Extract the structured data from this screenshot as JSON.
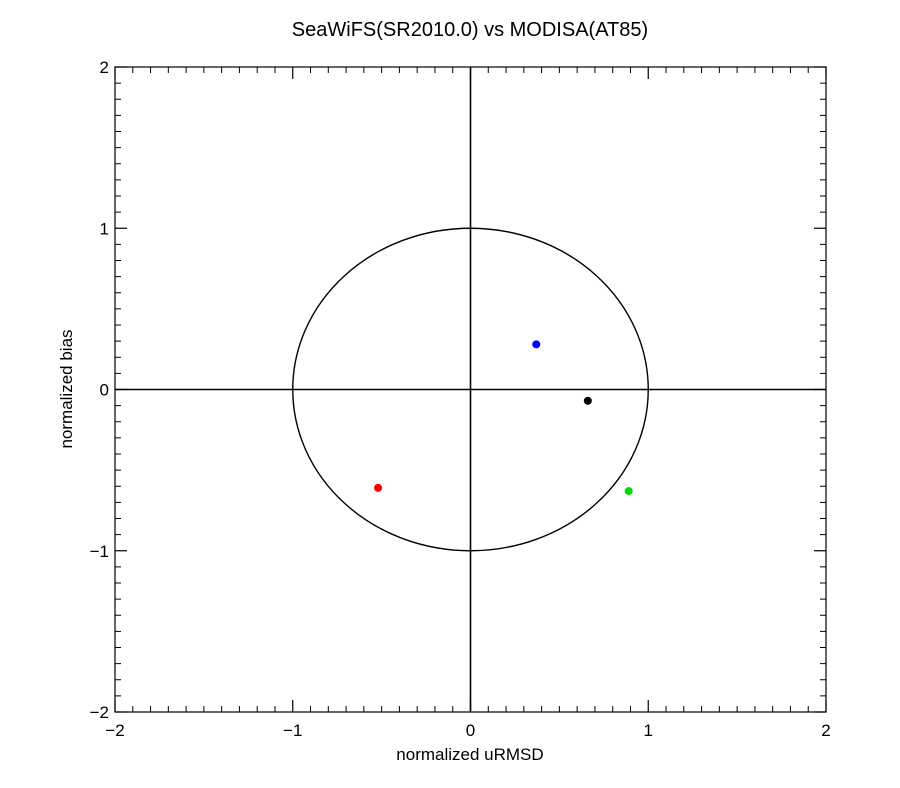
{
  "chart_data": {
    "type": "scatter",
    "title": "SeaWiFS(SR2010.0) vs MODISA(AT85)",
    "xlabel": "normalized uRMSD",
    "ylabel": "normalized bias",
    "xlim": [
      -2,
      2
    ],
    "ylim": [
      -2,
      2
    ],
    "x_ticks": [
      -2,
      -1,
      0,
      1,
      2
    ],
    "y_ticks": [
      -2,
      -1,
      0,
      1,
      2
    ],
    "x_tick_labels": [
      "−2",
      "−1",
      "0",
      "1",
      "2"
    ],
    "y_tick_labels": [
      "−2",
      "−1",
      "0",
      "1",
      "2"
    ],
    "minor_ticks_per_major": 10,
    "grid": false,
    "reference_lines": {
      "x": 0,
      "y": 0
    },
    "reference_circle_radius": 1.0,
    "points": [
      {
        "x": 0.37,
        "y": 0.28,
        "color": "#0000ff"
      },
      {
        "x": 0.66,
        "y": -0.07,
        "color": "#000000"
      },
      {
        "x": -0.52,
        "y": -0.61,
        "color": "#ff0000"
      },
      {
        "x": 0.89,
        "y": -0.63,
        "color": "#00dd00"
      }
    ]
  }
}
